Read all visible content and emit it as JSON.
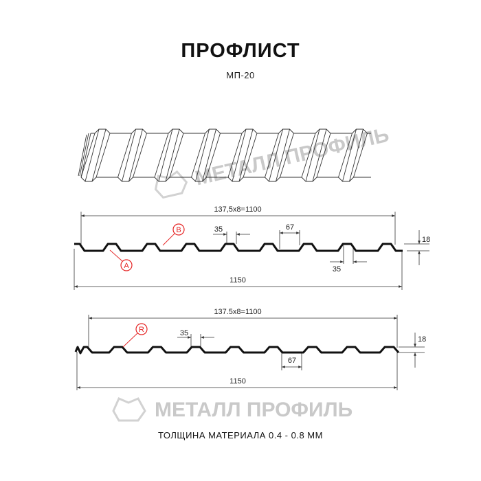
{
  "header": {
    "title": "ПРОФЛИСТ",
    "subtitle": "МП-20"
  },
  "watermark": {
    "text": "МЕТАЛЛ ПРОФИЛЬ",
    "color": "#c9c9c9"
  },
  "profile_1": {
    "pitch_label": "137,5x8=1100",
    "width_label": "1150",
    "top_shelf_label": "35",
    "rib_label": "67",
    "bottom_shelf_label": "35",
    "height_label": "18",
    "marker_a": "A",
    "marker_b": "B"
  },
  "profile_2": {
    "pitch_label": "137.5x8=1100",
    "width_label": "1150",
    "top_shelf_label": "35",
    "rib_label": "67",
    "height_label": "18",
    "marker_r": "R"
  },
  "colors": {
    "marker": "#e52222",
    "profile": "#111111",
    "dimension": "#333333"
  },
  "footer": {
    "thickness": "ТОЛЩИНА МАТЕРИАЛА 0.4 - 0.8 ММ"
  }
}
